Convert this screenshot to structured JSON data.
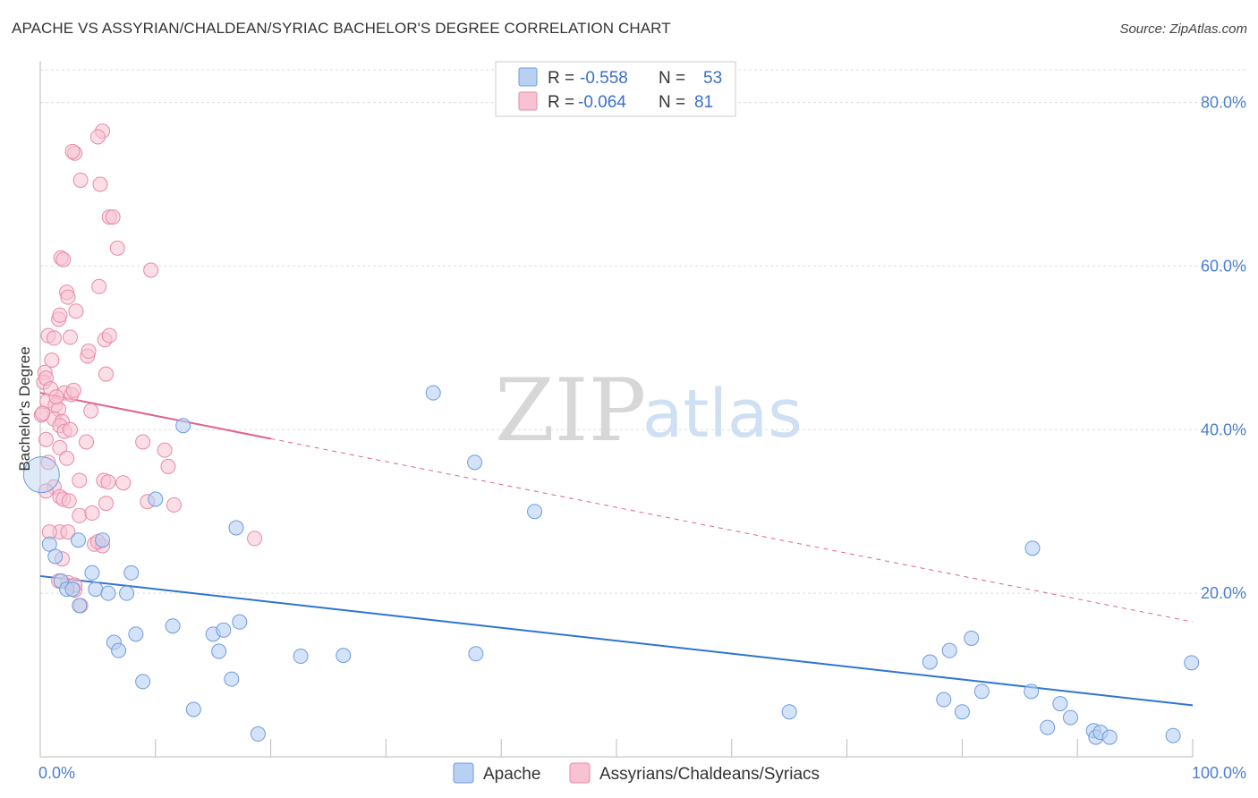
{
  "title": "APACHE VS ASSYRIAN/CHALDEAN/SYRIAC BACHELOR'S DEGREE CORRELATION CHART",
  "source": "Source: ZipAtlas.com",
  "watermark": {
    "zip": "ZIP",
    "atlas": "atlas"
  },
  "colors": {
    "apache_fill": "#b8d0f2",
    "apache_stroke": "#6e9be0",
    "apache_line": "#2f74d0",
    "assyrian_fill": "#f7c2d2",
    "assyrian_stroke": "#e889a8",
    "assyrian_line": "#e0628e",
    "grid": "#dddddd",
    "tick_label": "#4a7fd0"
  },
  "legend": {
    "rows": [
      {
        "r_label": "R =",
        "r_value": "-0.558",
        "n_label": "N =",
        "n_value": "53"
      },
      {
        "r_label": "R =",
        "r_value": "-0.064",
        "n_label": "N =",
        "n_value": "81"
      }
    ]
  },
  "chart_data": {
    "type": "scatter",
    "title": "APACHE VS ASSYRIAN/CHALDEAN/SYRIAC BACHELOR'S DEGREE CORRELATION CHART",
    "xlabel": "",
    "ylabel": "Bachelor's Degree",
    "xlim": [
      0,
      100
    ],
    "ylim": [
      0,
      84
    ],
    "x_ticks_labeled": [
      "0.0%",
      "100.0%"
    ],
    "y_ticks": [
      20,
      40,
      60,
      80
    ],
    "y_tick_labels": [
      "20.0%",
      "40.0%",
      "60.0%",
      "80.0%"
    ],
    "grid": true,
    "legend_position": "top-center",
    "series": [
      {
        "name": "Apache",
        "r": -0.558,
        "n": 53,
        "trend": {
          "x": [
            0,
            100
          ],
          "y": [
            22.1,
            6.3
          ],
          "style": "solid"
        },
        "points": [
          [
            0.1,
            34.5
          ],
          [
            0.8,
            26.0
          ],
          [
            1.3,
            24.5
          ],
          [
            1.8,
            21.5
          ],
          [
            2.3,
            20.5
          ],
          [
            2.8,
            20.5
          ],
          [
            3.4,
            18.5
          ],
          [
            3.3,
            26.5
          ],
          [
            4.5,
            22.5
          ],
          [
            4.8,
            20.5
          ],
          [
            5.4,
            26.5
          ],
          [
            5.9,
            20.0
          ],
          [
            6.4,
            14.0
          ],
          [
            6.8,
            13.0
          ],
          [
            7.5,
            20.0
          ],
          [
            7.9,
            22.5
          ],
          [
            8.3,
            15.0
          ],
          [
            8.9,
            9.2
          ],
          [
            10.0,
            31.5
          ],
          [
            11.5,
            16.0
          ],
          [
            12.4,
            40.5
          ],
          [
            13.3,
            5.8
          ],
          [
            15.0,
            15.0
          ],
          [
            15.5,
            12.9
          ],
          [
            15.9,
            15.5
          ],
          [
            16.6,
            9.5
          ],
          [
            17.0,
            28.0
          ],
          [
            17.3,
            16.5
          ],
          [
            18.9,
            2.8
          ],
          [
            22.6,
            12.3
          ],
          [
            26.3,
            12.4
          ],
          [
            34.1,
            44.5
          ],
          [
            37.7,
            36.0
          ],
          [
            37.8,
            12.6
          ],
          [
            42.9,
            30.0
          ],
          [
            65.0,
            5.5
          ],
          [
            77.2,
            11.6
          ],
          [
            78.4,
            7.0
          ],
          [
            78.9,
            13.0
          ],
          [
            80.0,
            5.5
          ],
          [
            80.8,
            14.5
          ],
          [
            81.7,
            8.0
          ],
          [
            86.1,
            25.5
          ],
          [
            86.0,
            8.0
          ],
          [
            87.4,
            3.6
          ],
          [
            88.5,
            6.5
          ],
          [
            89.4,
            4.8
          ],
          [
            91.4,
            3.2
          ],
          [
            91.6,
            2.4
          ],
          [
            92.0,
            3.0
          ],
          [
            92.8,
            2.4
          ],
          [
            98.3,
            2.6
          ],
          [
            99.9,
            11.5
          ]
        ]
      },
      {
        "name": "Assyrians/Chaldeans/Syriacs",
        "r": -0.064,
        "n": 81,
        "trend": {
          "x": [
            0,
            100
          ],
          "y": [
            44.5,
            16.5
          ],
          "solid_until_x": 20,
          "style": "solid-then-dashed"
        },
        "points": [
          [
            5.4,
            76.5
          ],
          [
            5.0,
            75.8
          ],
          [
            3.0,
            73.8
          ],
          [
            2.8,
            74.0
          ],
          [
            3.5,
            70.5
          ],
          [
            5.2,
            70.0
          ],
          [
            6.0,
            66.0
          ],
          [
            6.3,
            66.0
          ],
          [
            6.7,
            62.2
          ],
          [
            1.8,
            61.0
          ],
          [
            2.0,
            60.8
          ],
          [
            9.6,
            59.5
          ],
          [
            5.1,
            57.5
          ],
          [
            2.3,
            56.8
          ],
          [
            2.4,
            56.2
          ],
          [
            3.1,
            54.5
          ],
          [
            1.6,
            53.5
          ],
          [
            1.7,
            54.0
          ],
          [
            0.7,
            51.5
          ],
          [
            1.2,
            51.2
          ],
          [
            2.6,
            51.3
          ],
          [
            5.6,
            51.0
          ],
          [
            6.0,
            51.5
          ],
          [
            4.1,
            49.0
          ],
          [
            4.2,
            49.6
          ],
          [
            1.0,
            48.5
          ],
          [
            0.4,
            47.0
          ],
          [
            5.7,
            46.8
          ],
          [
            0.3,
            45.8
          ],
          [
            0.5,
            46.3
          ],
          [
            2.1,
            44.5
          ],
          [
            2.7,
            44.3
          ],
          [
            0.6,
            43.5
          ],
          [
            1.3,
            43.0
          ],
          [
            1.6,
            42.5
          ],
          [
            4.4,
            42.3
          ],
          [
            0.1,
            41.8
          ],
          [
            1.2,
            41.3
          ],
          [
            1.9,
            41.0
          ],
          [
            1.7,
            40.5
          ],
          [
            2.1,
            39.8
          ],
          [
            2.6,
            40.0
          ],
          [
            0.5,
            38.8
          ],
          [
            1.7,
            37.8
          ],
          [
            4.0,
            38.5
          ],
          [
            8.9,
            38.5
          ],
          [
            10.8,
            37.5
          ],
          [
            0.7,
            36.0
          ],
          [
            2.3,
            36.5
          ],
          [
            11.1,
            35.5
          ],
          [
            3.4,
            33.8
          ],
          [
            5.5,
            33.8
          ],
          [
            5.9,
            33.6
          ],
          [
            7.2,
            33.5
          ],
          [
            1.2,
            33.0
          ],
          [
            0.5,
            32.5
          ],
          [
            1.7,
            31.8
          ],
          [
            2.0,
            31.5
          ],
          [
            2.5,
            31.3
          ],
          [
            9.3,
            31.2
          ],
          [
            5.7,
            31.0
          ],
          [
            11.6,
            30.8
          ],
          [
            3.4,
            29.5
          ],
          [
            4.5,
            29.8
          ],
          [
            1.7,
            27.5
          ],
          [
            2.4,
            27.5
          ],
          [
            0.8,
            27.5
          ],
          [
            18.6,
            26.7
          ],
          [
            4.7,
            26.0
          ],
          [
            5.4,
            25.8
          ],
          [
            5.0,
            26.3
          ],
          [
            1.9,
            24.2
          ],
          [
            1.6,
            21.5
          ],
          [
            2.4,
            21.3
          ],
          [
            3.0,
            20.4
          ],
          [
            3.5,
            18.5
          ],
          [
            3.0,
            21.0
          ],
          [
            0.2,
            42.0
          ],
          [
            0.9,
            45.0
          ],
          [
            1.4,
            44.0
          ],
          [
            2.9,
            44.8
          ]
        ]
      }
    ]
  },
  "bottom_legend": [
    {
      "label": "Apache"
    },
    {
      "label": "Assyrians/Chaldeans/Syriacs"
    }
  ]
}
